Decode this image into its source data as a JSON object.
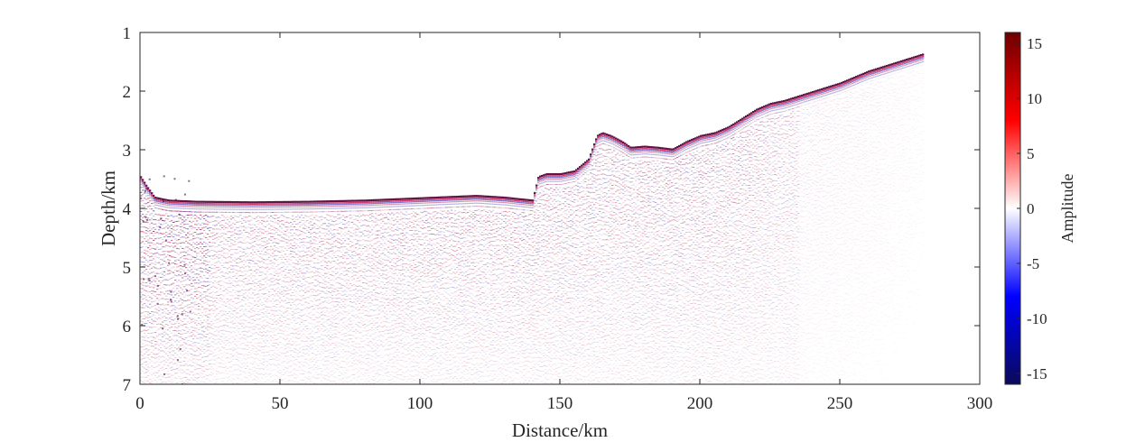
{
  "chart_data": {
    "type": "heatmap",
    "title": "",
    "xlabel": "Distance/km",
    "ylabel": "Depth/km",
    "xlim": [
      0,
      300
    ],
    "ylim": [
      7,
      1
    ],
    "x_ticks": [
      "0",
      "50",
      "100",
      "150",
      "200",
      "250",
      "300"
    ],
    "y_ticks": [
      "1",
      "2",
      "3",
      "4",
      "5",
      "6",
      "7"
    ],
    "x_tick_values": [
      0,
      50,
      100,
      150,
      200,
      250,
      300
    ],
    "y_tick_values": [
      1,
      2,
      3,
      4,
      5,
      6,
      7
    ],
    "grid": false,
    "colorbar": {
      "label": "Amplitude",
      "range": [
        -16,
        16
      ],
      "ticks": [
        "15",
        "10",
        "5",
        "0",
        "-5",
        "-10",
        "-15"
      ],
      "tick_values": [
        15,
        10,
        5,
        0,
        -5,
        -10,
        -15
      ],
      "colors": [
        "#0a0a5a",
        "#0000ff",
        "#ffffff",
        "#ff0000",
        "#6e0000"
      ]
    },
    "seafloor": {
      "x": [
        0,
        2,
        5,
        10,
        20,
        40,
        60,
        80,
        100,
        120,
        130,
        140,
        142,
        145,
        150,
        155,
        160,
        163,
        165,
        168,
        172,
        175,
        180,
        185,
        190,
        195,
        200,
        205,
        210,
        215,
        220,
        225,
        230,
        240,
        250,
        260,
        270,
        280
      ],
      "y": [
        3.45,
        3.6,
        3.8,
        3.85,
        3.87,
        3.88,
        3.87,
        3.85,
        3.81,
        3.77,
        3.8,
        3.85,
        3.45,
        3.4,
        3.4,
        3.35,
        3.15,
        2.75,
        2.7,
        2.75,
        2.85,
        2.95,
        2.93,
        2.95,
        2.98,
        2.85,
        2.75,
        2.7,
        2.6,
        2.45,
        2.3,
        2.2,
        2.15,
        2.0,
        1.85,
        1.65,
        1.5,
        1.35
      ]
    }
  }
}
